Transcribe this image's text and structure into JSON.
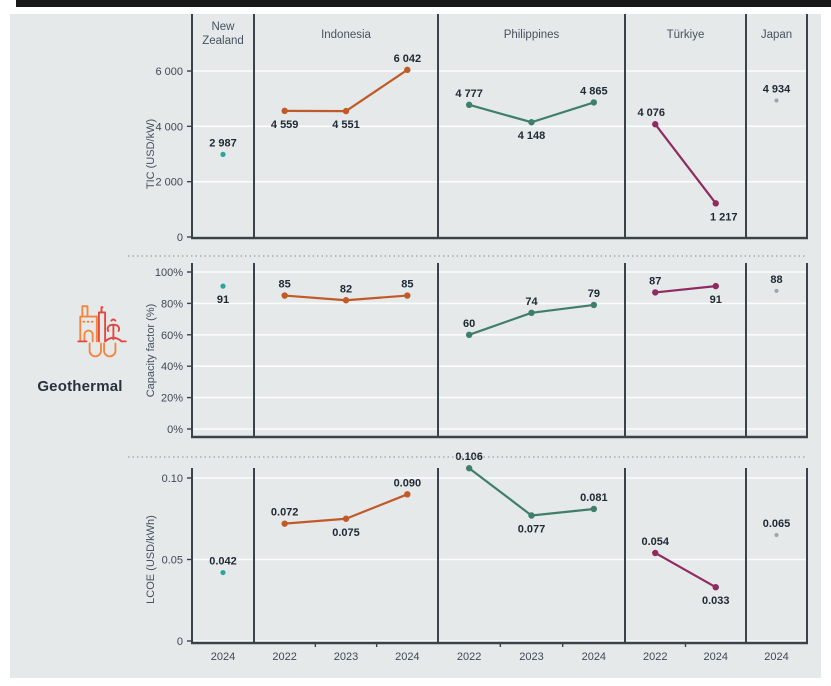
{
  "figure": {
    "technology_label": "Geothermal",
    "background_color": "#e6e9ea",
    "line_color": "#3a424a",
    "grid_color": "#fbfcfc",
    "value_label_color": "#202a35",
    "tick_label_color": "#3e4954",
    "header_color": "#46525e"
  },
  "columns": [
    {
      "label": "New Zealand",
      "header_lines": [
        "New",
        "Zealand"
      ],
      "years": [
        "2024"
      ],
      "color": "#29a79e",
      "dot_radius": 2.6
    },
    {
      "label": "Indonesia",
      "header_lines": [
        "Indonesia"
      ],
      "years": [
        "2022",
        "2023",
        "2024"
      ],
      "color": "#c05a28",
      "dot_radius": 3.2
    },
    {
      "label": "Philippines",
      "header_lines": [
        "Philippines"
      ],
      "years": [
        "2022",
        "2023",
        "2024"
      ],
      "color": "#3f7f6a",
      "dot_radius": 3.2
    },
    {
      "label": "Türkiye",
      "header_lines": [
        "Türkiye"
      ],
      "years": [
        "2022",
        "2024"
      ],
      "color": "#8e2b60",
      "dot_radius": 3.2
    },
    {
      "label": "Japan",
      "header_lines": [
        "Japan"
      ],
      "years": [
        "2024"
      ],
      "color": "#9fa4a7",
      "dot_radius": 2.0
    }
  ],
  "chart_data": [
    {
      "type": "line",
      "ylabel": "TIC (USD/kW)",
      "ylim": [
        0,
        6000
      ],
      "yticks": [
        {
          "value": 6000,
          "label": "6 000"
        },
        {
          "value": 4000,
          "label": "4 000"
        },
        {
          "value": 2000,
          "label": "2 000"
        },
        {
          "value": 0,
          "label": "0"
        }
      ],
      "series": [
        {
          "country": "New Zealand",
          "points": [
            {
              "year": "2024",
              "value": 2987,
              "label": "2 987",
              "label_pos": "above"
            }
          ]
        },
        {
          "country": "Indonesia",
          "points": [
            {
              "year": "2022",
              "value": 4559,
              "label": "4 559",
              "label_pos": "below"
            },
            {
              "year": "2023",
              "value": 4551,
              "label": "4 551",
              "label_pos": "below"
            },
            {
              "year": "2024",
              "value": 6042,
              "label": "6 042",
              "label_pos": "above"
            }
          ]
        },
        {
          "country": "Philippines",
          "points": [
            {
              "year": "2022",
              "value": 4777,
              "label": "4 777",
              "label_pos": "above"
            },
            {
              "year": "2023",
              "value": 4148,
              "label": "4 148",
              "label_pos": "below"
            },
            {
              "year": "2024",
              "value": 4865,
              "label": "4 865",
              "label_pos": "above"
            }
          ]
        },
        {
          "country": "Türkiye",
          "points": [
            {
              "year": "2022",
              "value": 4076,
              "label": "4 076",
              "label_pos": "above",
              "dx": -4
            },
            {
              "year": "2024",
              "value": 1217,
              "label": "1 217",
              "label_pos": "below",
              "dx": 8
            }
          ]
        },
        {
          "country": "Japan",
          "points": [
            {
              "year": "2024",
              "value": 4934,
              "label": "4 934",
              "label_pos": "above"
            }
          ]
        }
      ]
    },
    {
      "type": "line",
      "ylabel": "Capacity factor (%)",
      "ylim": [
        0,
        100
      ],
      "yticks": [
        {
          "value": 100,
          "label": "100%"
        },
        {
          "value": 80,
          "label": "80%"
        },
        {
          "value": 60,
          "label": "60%"
        },
        {
          "value": 40,
          "label": "40%"
        },
        {
          "value": 20,
          "label": "20%"
        },
        {
          "value": 0,
          "label": "0%"
        }
      ],
      "series": [
        {
          "country": "New Zealand",
          "points": [
            {
              "year": "2024",
              "value": 91,
              "label": "91",
              "label_pos": "below"
            }
          ]
        },
        {
          "country": "Indonesia",
          "points": [
            {
              "year": "2022",
              "value": 85,
              "label": "85",
              "label_pos": "above"
            },
            {
              "year": "2023",
              "value": 82,
              "label": "82",
              "label_pos": "above"
            },
            {
              "year": "2024",
              "value": 85,
              "label": "85",
              "label_pos": "above"
            }
          ]
        },
        {
          "country": "Philippines",
          "points": [
            {
              "year": "2022",
              "value": 60,
              "label": "60",
              "label_pos": "above"
            },
            {
              "year": "2023",
              "value": 74,
              "label": "74",
              "label_pos": "above"
            },
            {
              "year": "2024",
              "value": 79,
              "label": "79",
              "label_pos": "above"
            }
          ]
        },
        {
          "country": "Türkiye",
          "points": [
            {
              "year": "2022",
              "value": 87,
              "label": "87",
              "label_pos": "above"
            },
            {
              "year": "2024",
              "value": 91,
              "label": "91",
              "label_pos": "below"
            }
          ]
        },
        {
          "country": "Japan",
          "points": [
            {
              "year": "2024",
              "value": 88,
              "label": "88",
              "label_pos": "above"
            }
          ]
        }
      ]
    },
    {
      "type": "line",
      "ylabel": "LCOE (USD/kWh)",
      "ylim": [
        0,
        0.1
      ],
      "yticks": [
        {
          "value": 0.1,
          "label": "0.10"
        },
        {
          "value": 0.05,
          "label": "0.05"
        },
        {
          "value": 0,
          "label": "0"
        }
      ],
      "series": [
        {
          "country": "New Zealand",
          "points": [
            {
              "year": "2024",
              "value": 0.042,
              "label": "0.042",
              "label_pos": "above"
            }
          ]
        },
        {
          "country": "Indonesia",
          "points": [
            {
              "year": "2022",
              "value": 0.072,
              "label": "0.072",
              "label_pos": "above"
            },
            {
              "year": "2023",
              "value": 0.075,
              "label": "0.075",
              "label_pos": "below"
            },
            {
              "year": "2024",
              "value": 0.09,
              "label": "0.090",
              "label_pos": "above"
            }
          ]
        },
        {
          "country": "Philippines",
          "points": [
            {
              "year": "2022",
              "value": 0.106,
              "label": "0.106",
              "label_pos": "above"
            },
            {
              "year": "2023",
              "value": 0.077,
              "label": "0.077",
              "label_pos": "below"
            },
            {
              "year": "2024",
              "value": 0.081,
              "label": "0.081",
              "label_pos": "above"
            }
          ]
        },
        {
          "country": "Türkiye",
          "points": [
            {
              "year": "2022",
              "value": 0.054,
              "label": "0.054",
              "label_pos": "above"
            },
            {
              "year": "2024",
              "value": 0.033,
              "label": "0.033",
              "label_pos": "below"
            }
          ]
        },
        {
          "country": "Japan",
          "points": [
            {
              "year": "2024",
              "value": 0.065,
              "label": "0.065",
              "label_pos": "above"
            }
          ]
        }
      ]
    }
  ]
}
